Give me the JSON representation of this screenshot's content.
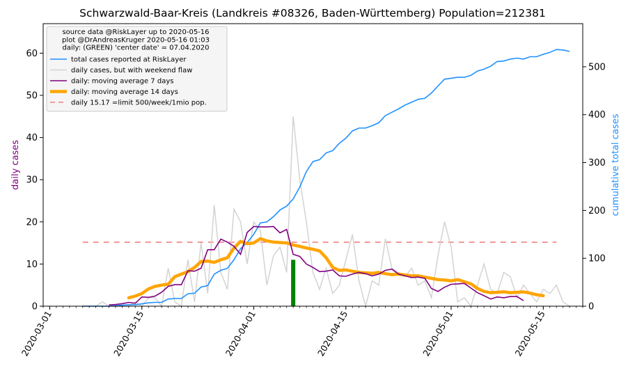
{
  "chart_data": {
    "type": "line",
    "title": "Schwarzwald-Baar-Kreis (Landkreis #08326, Baden-Württemberg) Population=212381",
    "ylabel_left": "daily cases",
    "ylabel_right": "cumulative total cases",
    "ylim_left": [
      0,
      67
    ],
    "ylim_right": [
      0,
      590
    ],
    "yticks_left": [
      0,
      10,
      20,
      30,
      40,
      50,
      60
    ],
    "yticks_right": [
      0,
      100,
      200,
      300,
      400,
      500
    ],
    "xlim": [
      "2020-02-29",
      "2020-05-21"
    ],
    "xticks": [
      "2020-03-01",
      "2020-03-15",
      "2020-04-01",
      "2020-04-15",
      "2020-05-01",
      "2020-05-15"
    ],
    "legend": {
      "placement": "top-left",
      "header": [
        "source data @RiskLayer up to 2020-05-16",
        "plot @DrAndreasKruger 2020-05-16 01:03",
        "daily: (GREEN) 'center date' = 07.04.2020"
      ],
      "entries": [
        {
          "label": "total cases reported at RiskLayer",
          "color": "#1e90ff"
        },
        {
          "label": "daily cases, but with weekend flaw",
          "color": "#d3d3d3"
        },
        {
          "label": "daily: moving average 7 days",
          "color": "#800080"
        },
        {
          "label": "daily: moving average 14 days",
          "color": "#ffa500"
        },
        {
          "label": "daily 15.17 =limit 500/week/1mio pop.",
          "color": "#f08080"
        }
      ]
    },
    "limit_value": 15.17,
    "center_date": "2020-04-07",
    "center_value": 11,
    "series": [
      {
        "key": "total",
        "axis": "right",
        "start": "2020-03-06",
        "values": [
          0,
          0,
          0,
          0,
          0,
          1,
          2,
          3,
          3,
          5,
          7,
          8,
          8,
          15,
          16,
          16,
          26,
          27,
          40,
          43,
          67,
          75,
          79,
          97,
          120,
          133,
          150,
          174,
          176,
          187,
          201,
          209,
          224,
          249,
          281,
          302,
          306,
          320,
          325,
          340,
          351,
          366,
          372,
          372,
          377,
          383,
          398,
          405,
          412,
          420,
          426,
          432,
          434,
          445,
          460,
          474,
          476,
          478,
          478,
          482,
          491,
          495,
          501,
          511,
          512,
          516,
          518,
          516,
          521,
          521,
          526,
          530,
          536,
          535,
          532
        ]
      },
      {
        "key": "daily",
        "axis": "left",
        "start": "2020-03-06",
        "values": [
          0,
          0,
          0,
          1,
          0,
          0,
          0,
          0,
          1,
          0,
          2,
          2,
          0,
          9,
          1,
          0,
          11,
          1,
          15,
          3,
          24,
          8,
          4,
          23,
          20,
          10,
          20,
          18,
          5,
          12,
          14,
          8,
          45,
          30,
          20,
          8,
          4,
          9,
          3,
          5,
          11,
          17,
          6,
          0,
          6,
          5,
          16,
          9,
          8,
          7,
          9,
          5,
          6,
          2,
          12,
          20,
          14,
          1,
          2,
          0,
          5,
          10,
          4,
          3,
          8,
          7,
          2,
          5,
          3,
          1,
          4,
          3,
          5,
          1,
          0
        ]
      },
      {
        "key": "ma7",
        "axis": "left",
        "start": "2020-03-10",
        "values": [
          0.3,
          0.4,
          0.6,
          0.9,
          0.7,
          2.2,
          2.1,
          2.4,
          3.3,
          4.7,
          5.1,
          5.1,
          8.4,
          8.3,
          9.0,
          13.4,
          13.4,
          15.9,
          15.2,
          14.2,
          12.3,
          17.5,
          18.9,
          18.8,
          18.8,
          18.9,
          17.4,
          18.2,
          12.3,
          11.8,
          10.0,
          9.2,
          8.2,
          8.3,
          8.6,
          7.2,
          7.1,
          7.6,
          8.0,
          7.7,
          7.2,
          7.6,
          8.5,
          8.8,
          7.6,
          7.2,
          6.8,
          6.9,
          6.6,
          4.2,
          3.5,
          4.5,
          5.2,
          5.3,
          5.4,
          4.3,
          3.2,
          2.5,
          1.7,
          2.2,
          2.0,
          2.3,
          2.3,
          1.3
        ]
      },
      {
        "key": "ma14",
        "axis": "left",
        "start": "2020-03-13",
        "values": [
          2.0,
          2.4,
          3.0,
          4.1,
          4.7,
          5.0,
          5.2,
          7.0,
          7.6,
          8.2,
          9.2,
          10.6,
          10.7,
          10.4,
          11.0,
          11.5,
          13.8,
          15.4,
          14.8,
          15.0,
          16.0,
          15.5,
          15.2,
          15.1,
          15.0,
          14.5,
          14.2,
          13.8,
          13.5,
          13.1,
          11.5,
          9.2,
          8.5,
          8.6,
          8.3,
          8.0,
          7.9,
          7.8,
          8.0,
          7.7,
          7.5,
          7.6,
          7.4,
          7.2,
          7.2,
          6.9,
          6.6,
          6.3,
          6.2,
          6.0,
          6.3,
          5.8,
          5.3,
          4.2,
          3.5,
          3.2,
          3.3,
          3.4,
          3.2,
          3.3,
          3.4,
          3.1,
          2.7,
          2.5
        ]
      }
    ]
  }
}
